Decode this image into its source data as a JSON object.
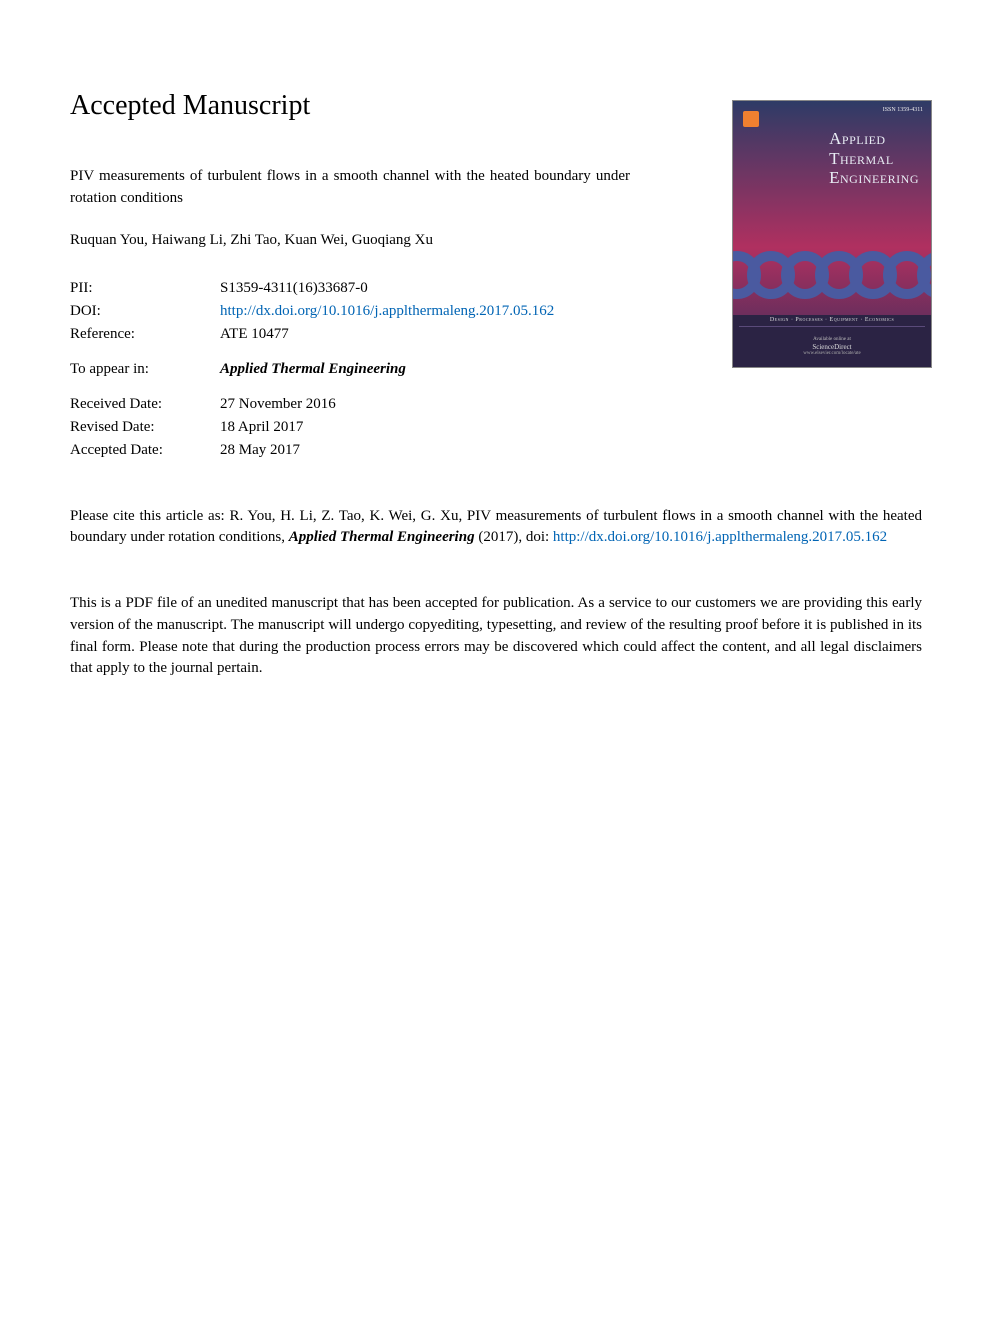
{
  "heading": "Accepted Manuscript",
  "title": "PIV measurements of turbulent flows in a smooth channel with the heated boundary under rotation conditions",
  "authors": "Ruquan You, Haiwang Li, Zhi Tao, Kuan Wei, Guoqiang Xu",
  "meta": {
    "pii_label": "PII:",
    "pii_value": "S1359-4311(16)33687-0",
    "doi_label": "DOI:",
    "doi_value": "http://dx.doi.org/10.1016/j.applthermaleng.2017.05.162",
    "reference_label": "Reference:",
    "reference_value": "ATE 10477",
    "toappear_label": "To appear in:",
    "toappear_value": "Applied Thermal Engineering",
    "received_label": "Received Date:",
    "received_value": "27 November 2016",
    "revised_label": "Revised Date:",
    "revised_value": "18 April 2017",
    "accepted_label": "Accepted Date:",
    "accepted_value": "28 May 2017"
  },
  "citation": {
    "prefix": "Please cite this article as: R. You, H. Li, Z. Tao, K. Wei, G. Xu, PIV measurements of turbulent flows in a smooth channel with the heated boundary under rotation conditions, ",
    "journal": "Applied Thermal Engineering",
    "year": " (2017), doi: ",
    "link": "http://dx.doi.org/10.1016/j.applthermaleng.2017.05.162"
  },
  "disclaimer": "This is a PDF file of an unedited manuscript that has been accepted for publication. As a service to our customers we are providing this early version of the manuscript. The manuscript will undergo copyediting, typesetting, and review of the resulting proof before it is published in its final form. Please note that during the production process errors may be discovered which could affect the content, and all legal disclaimers that apply to the journal pertain.",
  "cover": {
    "issn": "ISSN 1359-4311",
    "title_l1": "Applied",
    "title_l2": "Thermal",
    "title_l3": "Engineering",
    "tagline": "Design · Processes · Equipment · Economics",
    "avail": "Available online at",
    "sd": "ScienceDirect",
    "url": "www.elsevier.com/locate/ate",
    "colors": {
      "bg_top": "#2e3b66",
      "bg_mid": "#b03060",
      "bg_bot": "#3a2d5a",
      "chain": "#4a5aa0",
      "footer_bg": "#2b2344",
      "publisher_mark": "#f08030",
      "title_text": "#e8ecf4"
    }
  },
  "colors": {
    "link": "#0064b4",
    "text": "#000000",
    "background": "#ffffff"
  }
}
